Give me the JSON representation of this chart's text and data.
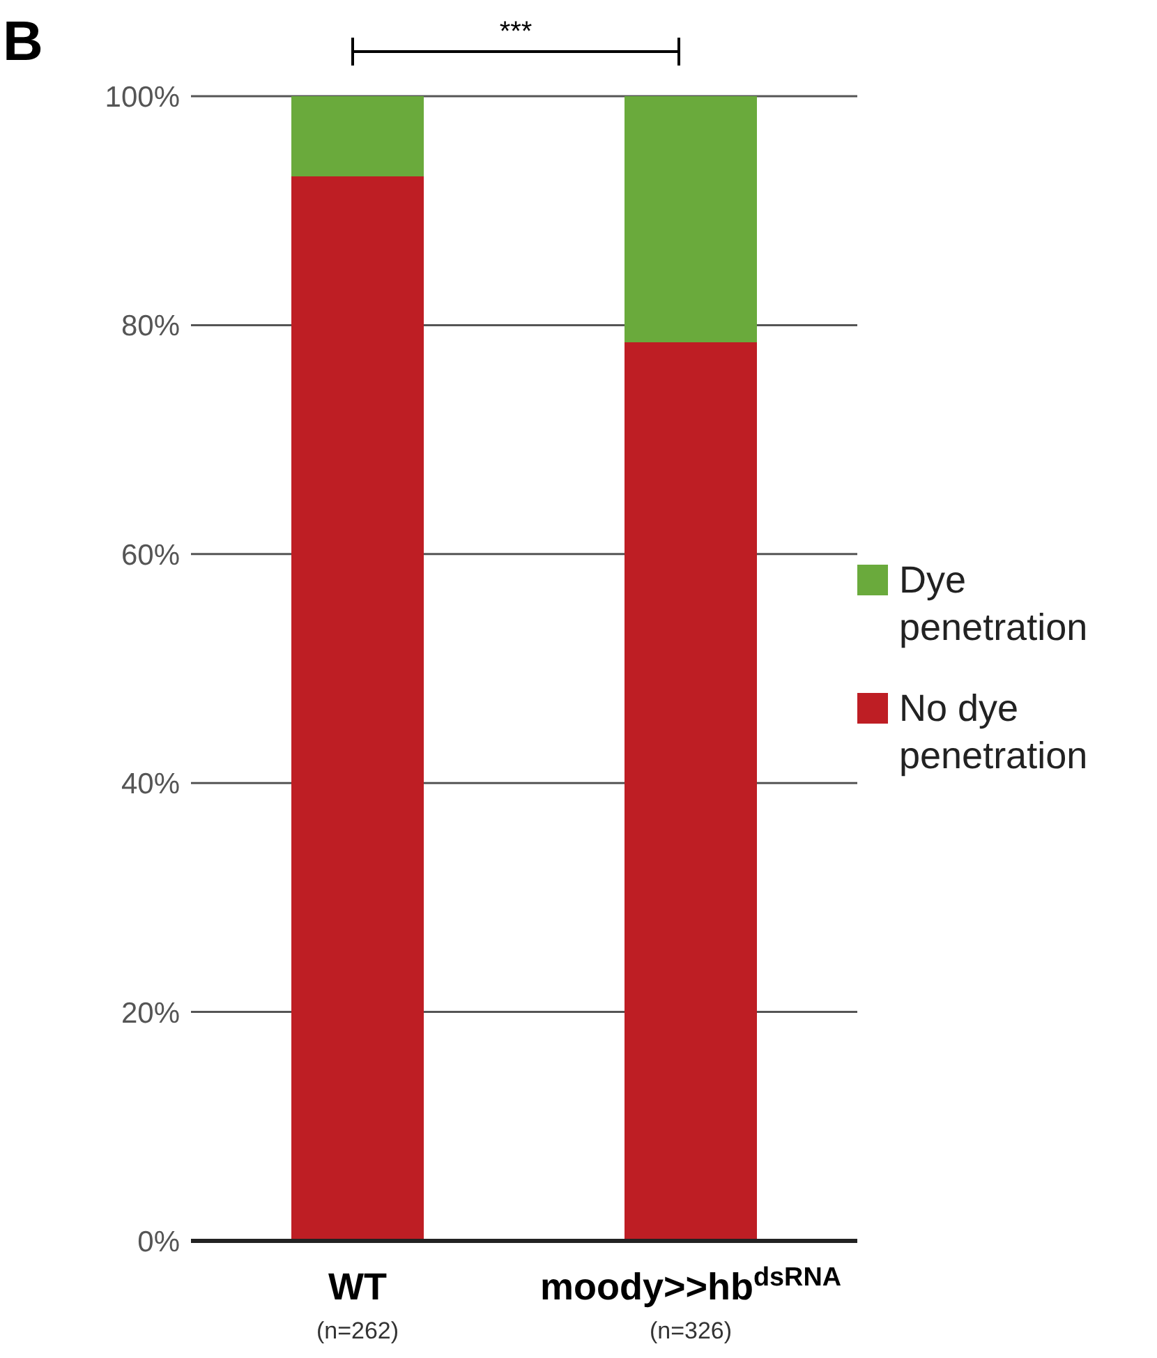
{
  "chart_data": {
    "type": "bar",
    "stacked": true,
    "categories": [
      "WT\n(n=262)",
      "moody>>hb$^{dsRNA}$\n(n=326)"
    ],
    "series": [
      {
        "name": "No dye penetration",
        "color": "#be1e24",
        "values": [
          93,
          78.5
        ]
      },
      {
        "name": "Dye penetration",
        "color": "#6aaa3c",
        "values": [
          7,
          21.5
        ]
      }
    ],
    "ylim": [
      0,
      100
    ],
    "yticks": [
      {
        "value": 0,
        "label": "0%"
      },
      {
        "value": 20,
        "label": "20%"
      },
      {
        "value": 40,
        "label": "40%"
      },
      {
        "value": 60,
        "label": "60%"
      },
      {
        "value": 80,
        "label": "80%"
      },
      {
        "value": 100,
        "label": "100%"
      }
    ],
    "grid": "y",
    "legend": "right",
    "annotations": [
      "B",
      "***"
    ]
  }
}
